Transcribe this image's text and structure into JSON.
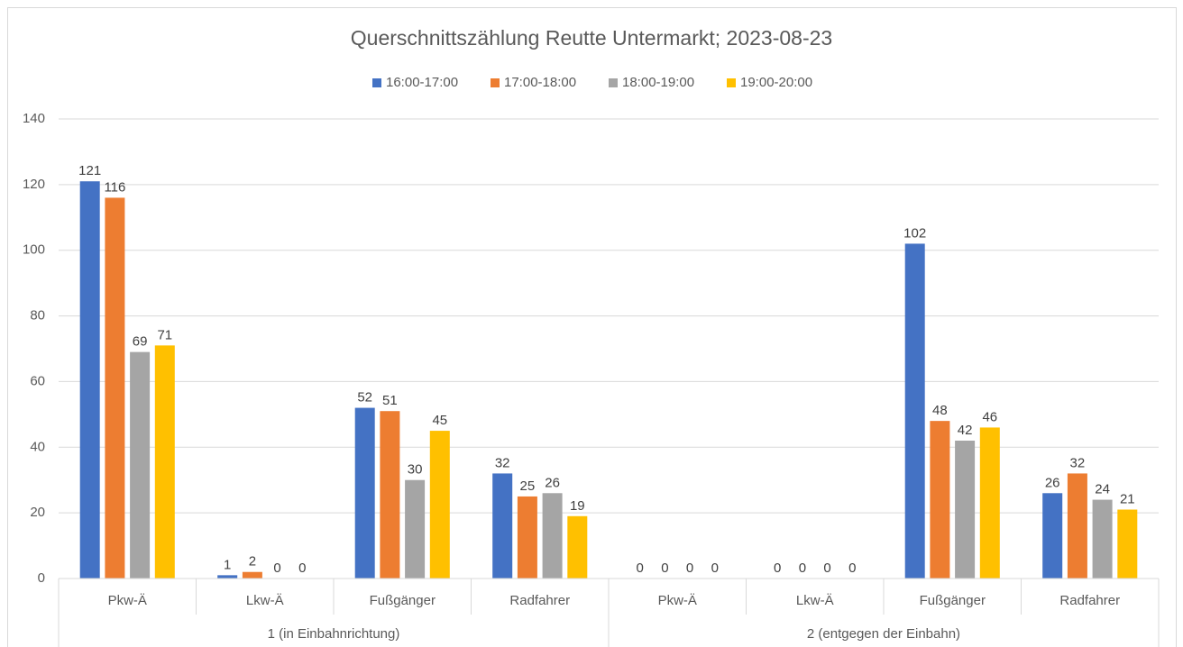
{
  "chart_data": {
    "type": "bar",
    "title": "Querschnittszählung Reutte Untermarkt; 2023-08-23",
    "categories": [
      "Pkw-Ä",
      "Lkw-Ä",
      "Fußgänger",
      "Radfahrer",
      "Pkw-Ä",
      "Lkw-Ä",
      "Fußgänger",
      "Radfahrer"
    ],
    "groups": [
      "1 (in Einbahnrichtung)",
      "2 (entgegen der Einbahn)"
    ],
    "series": [
      {
        "name": "16:00-17:00",
        "color": "#4472c4",
        "values": [
          121,
          1,
          52,
          32,
          0,
          0,
          102,
          26
        ]
      },
      {
        "name": "17:00-18:00",
        "color": "#ed7d31",
        "values": [
          116,
          2,
          51,
          25,
          0,
          0,
          48,
          32
        ]
      },
      {
        "name": "18:00-19:00",
        "color": "#a5a5a5",
        "values": [
          69,
          0,
          30,
          26,
          0,
          0,
          42,
          24
        ]
      },
      {
        "name": "19:00-20:00",
        "color": "#ffc000",
        "values": [
          71,
          0,
          45,
          19,
          0,
          0,
          46,
          21
        ]
      }
    ],
    "ylim": [
      0,
      140
    ],
    "yticks": [
      0,
      20,
      40,
      60,
      80,
      100,
      120,
      140
    ],
    "grid": true,
    "legend": "top"
  }
}
